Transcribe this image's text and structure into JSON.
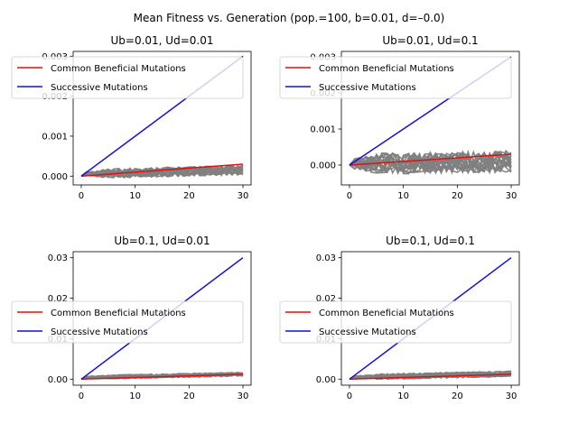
{
  "chart_data": {
    "type": "line",
    "suptitle": "Mean Fitness vs. Generation (pop.=100, b=0.01, d=–0.0)",
    "colors": {
      "common": "#dd1111",
      "successive": "#1111dd",
      "replicates": "#808080",
      "legend_edge": "#cccccc"
    },
    "replicate_count": 20,
    "subplots": [
      {
        "title": "Ub=0.01, Ud=0.01",
        "xlim": [
          -1.5,
          31.5
        ],
        "ylim": [
          -0.00022,
          0.00312
        ],
        "xticks": [
          0,
          10,
          20,
          30
        ],
        "yticks": [
          0.0,
          0.001,
          0.002,
          0.003
        ],
        "yticklabels": [
          "0.000",
          "0.001",
          "0.002",
          "0.003"
        ],
        "legend_loc": "upper-left",
        "series": [
          {
            "name": "Common Beneficial Mutations",
            "x": [
              0,
              30
            ],
            "y": [
              0.0,
              0.0003
            ]
          },
          {
            "name": "Successive Mutations",
            "x": [
              0,
              30
            ],
            "y": [
              0.0,
              0.003
            ]
          }
        ],
        "replicate_band": {
          "x": [
            0,
            30
          ],
          "center_end": 0.00015,
          "spread": 0.00012
        }
      },
      {
        "title": "Ub=0.01, Ud=0.1",
        "xlim": [
          -1.5,
          31.5
        ],
        "ylim": [
          -0.00055,
          0.00315
        ],
        "xticks": [
          0,
          10,
          20,
          30
        ],
        "yticks": [
          0.0,
          0.001,
          0.002,
          0.003
        ],
        "yticklabels": [
          "0.000",
          "0.001",
          "0.002",
          "0.003"
        ],
        "legend_loc": "upper-left",
        "series": [
          {
            "name": "Common Beneficial Mutations",
            "x": [
              0,
              30
            ],
            "y": [
              0.0,
              0.0003
            ]
          },
          {
            "name": "Successive Mutations",
            "x": [
              0,
              30
            ],
            "y": [
              0.0,
              0.003
            ]
          }
        ],
        "replicate_band": {
          "x": [
            0,
            30
          ],
          "center_end": 0.0001,
          "spread": 0.0003
        }
      },
      {
        "title": "Ub=0.1, Ud=0.01",
        "xlim": [
          -1.5,
          31.5
        ],
        "ylim": [
          -0.0015,
          0.0315
        ],
        "xticks": [
          0,
          10,
          20,
          30
        ],
        "yticks": [
          0.0,
          0.01,
          0.02,
          0.03
        ],
        "yticklabels": [
          "0.00",
          "0.01",
          "0.02",
          "0.03"
        ],
        "legend_loc": "center-left",
        "series": [
          {
            "name": "Common Beneficial Mutations",
            "x": [
              0,
              30
            ],
            "y": [
              0.0,
              0.0012
            ]
          },
          {
            "name": "Successive Mutations",
            "x": [
              0,
              30
            ],
            "y": [
              0.0,
              0.03
            ]
          }
        ],
        "replicate_band": {
          "x": [
            0,
            30
          ],
          "center_end": 0.0012,
          "spread": 0.0005
        }
      },
      {
        "title": "Ub=0.1, Ud=0.1",
        "xlim": [
          -1.5,
          31.5
        ],
        "ylim": [
          -0.0015,
          0.0315
        ],
        "xticks": [
          0,
          10,
          20,
          30
        ],
        "yticks": [
          0.0,
          0.01,
          0.02,
          0.03
        ],
        "yticklabels": [
          "0.00",
          "0.01",
          "0.02",
          "0.03"
        ],
        "legend_loc": "center-left",
        "series": [
          {
            "name": "Common Beneficial Mutations",
            "x": [
              0,
              30
            ],
            "y": [
              0.0,
              0.0012
            ]
          },
          {
            "name": "Successive Mutations",
            "x": [
              0,
              30
            ],
            "y": [
              0.0,
              0.03
            ]
          }
        ],
        "replicate_band": {
          "x": [
            0,
            30
          ],
          "center_end": 0.0013,
          "spread": 0.0007
        }
      }
    ]
  }
}
